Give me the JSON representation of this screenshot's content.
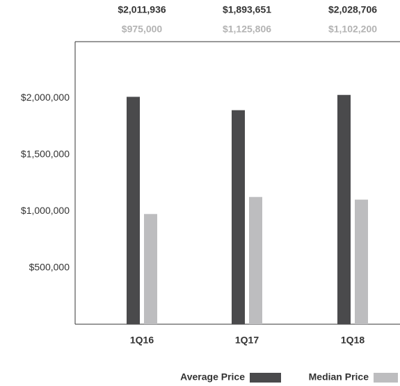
{
  "chart_data": {
    "type": "bar",
    "categories": [
      "1Q16",
      "1Q17",
      "1Q18"
    ],
    "series": [
      {
        "name": "Average Price",
        "color": "#4a4a4c",
        "values": [
          2011936,
          1893651,
          2028706
        ],
        "value_labels": [
          "$2,011,936",
          "$1,893,651",
          "$2,028,706"
        ],
        "label_color": "#333333"
      },
      {
        "name": "Median Price",
        "color": "#bdbdbf",
        "values": [
          975000,
          1125806,
          1102200
        ],
        "value_labels": [
          "$975,000",
          "$1,125,806",
          "$1,102,200"
        ],
        "label_color": "#b3b3b3"
      }
    ],
    "ylim": [
      0,
      2500000
    ],
    "yticks": [
      {
        "value": 500000,
        "label": "$500,000"
      },
      {
        "value": 1000000,
        "label": "$1,000,000"
      },
      {
        "value": 1500000,
        "label": "$1,500,000"
      },
      {
        "value": 2000000,
        "label": "$2,000,000"
      }
    ]
  }
}
